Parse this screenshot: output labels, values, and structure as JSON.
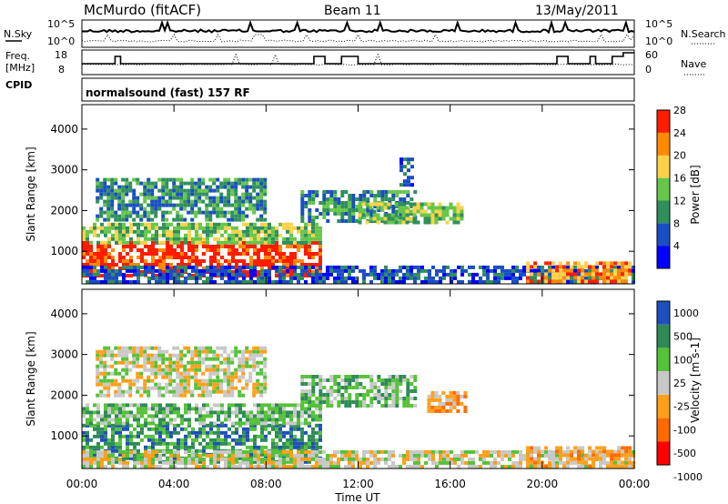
{
  "header": {
    "station": "McMurdo (fitACF)",
    "beam": "Beam 11",
    "date": "13/May/2011"
  },
  "mode_label": "normalsound (fast) 157 RF",
  "sky_panel": {
    "left_label": "N.Sky",
    "left_ticks": [
      "10^5",
      "10^0"
    ],
    "right_label": "N.Search",
    "right_ticks": [
      "10^5",
      "10^0"
    ]
  },
  "freq_panel": {
    "left_label_1": "Freq.",
    "left_label_2": "[MHz]",
    "left_ticks": [
      "18",
      "8"
    ],
    "right_label": "Nave",
    "right_ticks": [
      "60",
      "0"
    ]
  },
  "cpid_label": "CPID",
  "colors": {
    "power": [
      "#0000ff",
      "#1a4ec2",
      "#2f8f5c",
      "#66c64a",
      "#ffd24a",
      "#ff8a00",
      "#ff1d00"
    ],
    "velocity": [
      "#ff0000",
      "#ff6a00",
      "#ff9f1a",
      "#c8c8c8",
      "#55c238",
      "#2e8b57",
      "#1e4fbf"
    ]
  },
  "chart_data": [
    {
      "type": "heatmap",
      "title": "Power",
      "xlabel": "Time UT",
      "ylabel": "Slant Range [km]",
      "x_ticks": [
        "00:00",
        "04:00",
        "08:00",
        "12:00",
        "16:00",
        "20:00",
        "00:00"
      ],
      "y_ticks": [
        "1000",
        "2000",
        "3000",
        "4000"
      ],
      "ylim": [
        200,
        4600
      ],
      "colorbar_label": "Power [dB]",
      "colorbar_ticks": [
        "4",
        "8",
        "12",
        "16",
        "20",
        "24",
        "28"
      ],
      "regions": [
        {
          "t0": 0.0,
          "t1": 10.3,
          "r0": 400,
          "r1": 1250,
          "level": 6
        },
        {
          "t0": 0.0,
          "t1": 10.3,
          "r0": 1250,
          "r1": 1700,
          "level": 3
        },
        {
          "t0": 0.6,
          "t1": 8.0,
          "r0": 1800,
          "r1": 2800,
          "level": 2
        },
        {
          "t0": 9.5,
          "t1": 14.5,
          "r0": 1700,
          "r1": 2500,
          "level": 2
        },
        {
          "t0": 12.0,
          "t1": 16.5,
          "r0": 1700,
          "r1": 2200,
          "level": 3
        },
        {
          "t0": 13.8,
          "t1": 14.4,
          "r0": 2600,
          "r1": 3300,
          "level": 1
        },
        {
          "t0": 0.0,
          "t1": 24.0,
          "r0": 250,
          "r1": 650,
          "level": 1
        },
        {
          "t0": 19.3,
          "t1": 23.8,
          "r0": 300,
          "r1": 750,
          "level": 5
        }
      ]
    },
    {
      "type": "heatmap",
      "title": "Velocity",
      "xlabel": "Time UT",
      "ylabel": "Slant Range [km]",
      "x_ticks": [
        "00:00",
        "04:00",
        "08:00",
        "12:00",
        "16:00",
        "20:00",
        "00:00"
      ],
      "y_ticks": [
        "1000",
        "2000",
        "3000",
        "4000"
      ],
      "ylim": [
        200,
        4600
      ],
      "colorbar_label": "Velocity [m s-1]",
      "colorbar_ticks": [
        "1000",
        "500",
        "100",
        "25",
        "-25",
        "-100",
        "-500",
        "-1000"
      ],
      "regions": [
        {
          "t0": 0.0,
          "t1": 10.3,
          "r0": 400,
          "r1": 1300,
          "level": 5
        },
        {
          "t0": 0.0,
          "t1": 10.3,
          "r0": 1300,
          "r1": 1800,
          "level": 4
        },
        {
          "t0": 0.6,
          "t1": 8.0,
          "r0": 2000,
          "r1": 3200,
          "level": 3
        },
        {
          "t0": 9.5,
          "t1": 14.5,
          "r0": 1700,
          "r1": 2500,
          "level": 4
        },
        {
          "t0": 15.0,
          "t1": 16.6,
          "r0": 1650,
          "r1": 2100,
          "level": 2
        },
        {
          "t0": 0.0,
          "t1": 24.0,
          "r0": 250,
          "r1": 650,
          "level": 3
        },
        {
          "t0": 19.3,
          "t1": 23.8,
          "r0": 300,
          "r1": 750,
          "level": 2
        }
      ]
    }
  ]
}
